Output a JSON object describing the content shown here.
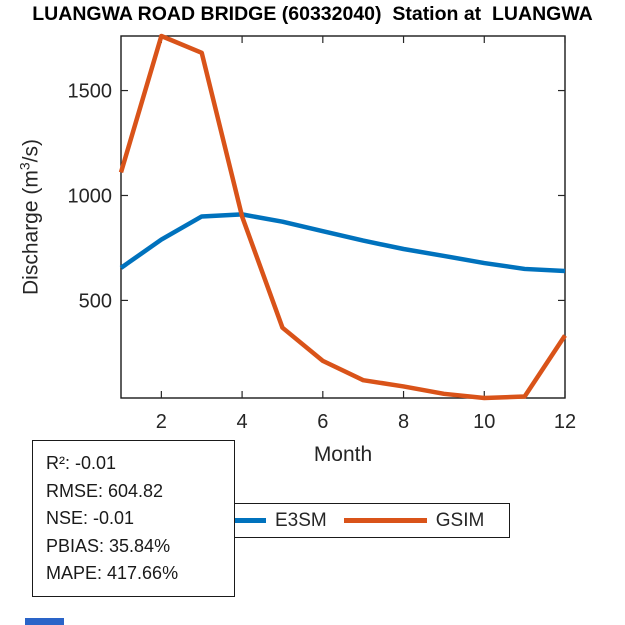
{
  "title": "LUANGWA ROAD BRIDGE (60332040)  Station at  LUANGWA",
  "chart_data": {
    "type": "line",
    "title": "LUANGWA ROAD BRIDGE (60332040)  Station at  LUANGWA",
    "x": [
      1,
      2,
      3,
      4,
      5,
      6,
      7,
      8,
      9,
      10,
      11,
      12
    ],
    "series": [
      {
        "name": "E3SM",
        "color": "#0072BD",
        "values": [
          655,
          790,
          900,
          910,
          875,
          830,
          785,
          745,
          712,
          678,
          650,
          640
        ]
      },
      {
        "name": "GSIM",
        "color": "#D95319",
        "values": [
          1110,
          1760,
          1680,
          900,
          370,
          212,
          120,
          90,
          55,
          35,
          42,
          333
        ]
      }
    ],
    "xlabel": "Month",
    "ylabel": "Discharge (m³/s)",
    "xticks": [
      2,
      4,
      6,
      8,
      10,
      12
    ],
    "yticks": [
      500,
      1000,
      1500
    ],
    "xlim": [
      1,
      12
    ],
    "ylim": [
      35,
      1760
    ],
    "grid": false,
    "legend_position": "below-axis horizontal"
  },
  "ylabel_parts": {
    "prefix": "Discharge (m",
    "sup": "3",
    "suffix": "/s)"
  },
  "legend": {
    "entries": [
      {
        "label": "E3SM",
        "color": "#0072BD"
      },
      {
        "label": "GSIM",
        "color": "#D95319"
      }
    ]
  },
  "stats_box": {
    "lines": [
      "R²: -0.01",
      "RMSE: 604.82",
      "NSE: -0.01",
      "PBIAS: 35.84%",
      "MAPE: 417.66%"
    ]
  },
  "colors": {
    "axis": "#262626",
    "axis_box": "#1a1a1a",
    "title_text": "#000000",
    "e3sm_line": "#0072BD",
    "gsim_line": "#D95319",
    "bottom_strip": "#2a64c8"
  }
}
